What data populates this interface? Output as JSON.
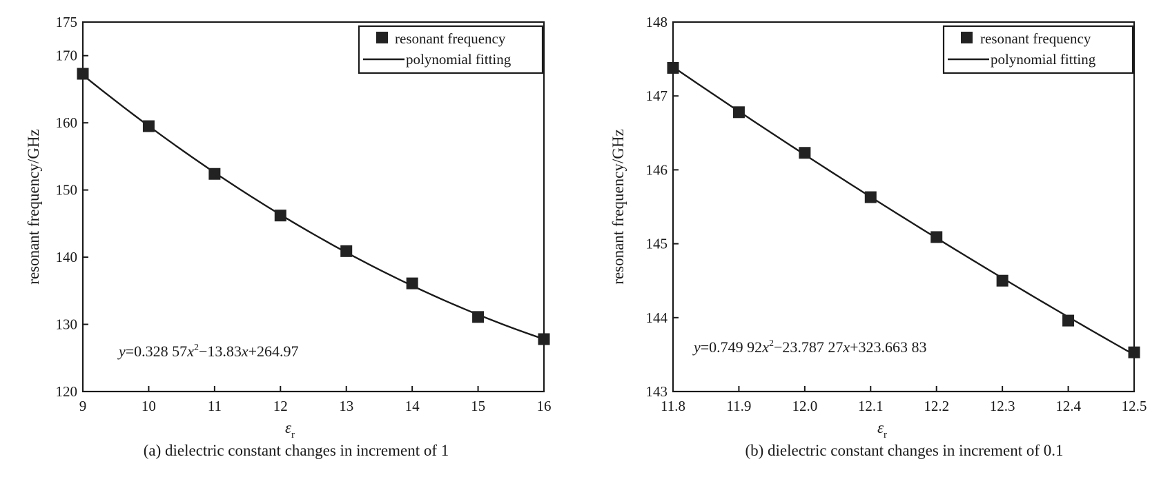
{
  "chart_data": [
    {
      "type": "scatter",
      "caption": "(a) dielectric constant changes in increment of 1",
      "xlabel": "ε",
      "xlabel_sub": "r",
      "ylabel": "resonant frequency/GHz",
      "xlim": [
        9,
        16
      ],
      "ylim": [
        120,
        175
      ],
      "xticks": [
        9,
        10,
        11,
        12,
        13,
        14,
        15,
        16
      ],
      "yticks": [
        120,
        130,
        140,
        150,
        160,
        170,
        175
      ],
      "legend": {
        "position": "top-right",
        "items": [
          "resonant frequency",
          "polynomial fitting"
        ]
      },
      "series": [
        {
          "name": "resonant frequency",
          "x": [
            9,
            10,
            11,
            12,
            13,
            14,
            15,
            16
          ],
          "y": [
            167.3,
            159.5,
            152.4,
            146.2,
            140.9,
            136.1,
            131.1,
            127.8
          ]
        }
      ],
      "fit": {
        "name": "polynomial fitting",
        "coefficients": [
          0.32857,
          -13.83,
          264.97
        ],
        "equation": {
          "y": "y",
          "eq1": "=0.328 57",
          "x1": "x",
          "sup": "2",
          "eq2": "−13.83",
          "x2": "x",
          "eq3": "+264.97"
        }
      }
    },
    {
      "type": "scatter",
      "caption": "(b) dielectric constant changes in increment of 0.1",
      "xlabel": "ε",
      "xlabel_sub": "r",
      "ylabel": "resonant frequency/GHz",
      "xlim": [
        11.8,
        12.5
      ],
      "ylim": [
        143,
        148
      ],
      "xticks": [
        11.8,
        11.9,
        12.0,
        12.1,
        12.2,
        12.3,
        12.4,
        12.5
      ],
      "xtick_labels": [
        "11.8",
        "11.9",
        "12.0",
        "12.1",
        "12.2",
        "12.3",
        "12.4",
        "12.5"
      ],
      "yticks": [
        143,
        144,
        145,
        146,
        147,
        148
      ],
      "legend": {
        "position": "top-right",
        "items": [
          "resonant frequency",
          "polynomial fitting"
        ]
      },
      "series": [
        {
          "name": "resonant frequency",
          "x": [
            11.8,
            11.9,
            12.0,
            12.1,
            12.2,
            12.3,
            12.4,
            12.5
          ],
          "y": [
            147.38,
            146.78,
            146.23,
            145.63,
            145.09,
            144.5,
            143.96,
            143.53
          ]
        }
      ],
      "fit": {
        "name": "polynomial fitting",
        "coefficients": [
          0.74992,
          -23.78727,
          323.66383
        ],
        "equation": {
          "y": "y",
          "eq1": "=0.749 92",
          "x1": "x",
          "sup": "2",
          "eq2": "−23.787 27",
          "x2": "x",
          "eq3": "+323.663 83"
        }
      }
    }
  ]
}
